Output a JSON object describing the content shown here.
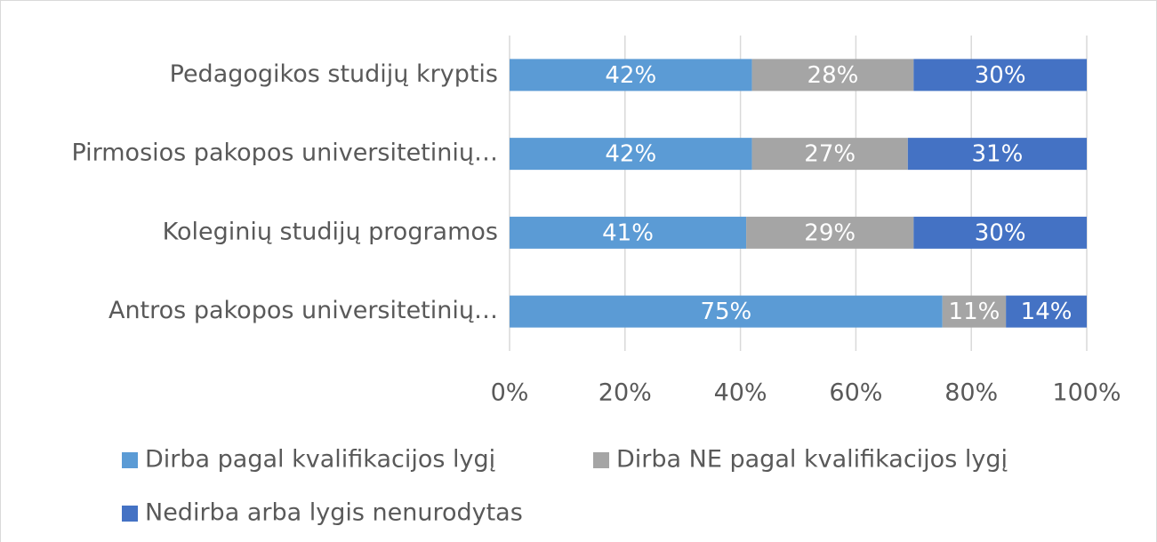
{
  "chart_data": {
    "type": "stacked-bar-horizontal",
    "categories": [
      "Pedagogikos studijų kryptis",
      "Pirmosios pakopos universitetinių…",
      "Koleginių studijų programos",
      "Antros pakopos universitetinių…"
    ],
    "series": [
      {
        "name": "Dirba pagal kvalifikacijos lygį",
        "color": "#5b9bd5",
        "values": [
          42,
          42,
          41,
          75
        ],
        "value_labels": [
          "42%",
          "42%",
          "41%",
          "75%"
        ]
      },
      {
        "name": "Dirba NE pagal kvalifikacijos lygį",
        "color": "#a5a5a5",
        "values": [
          28,
          27,
          29,
          11
        ],
        "value_labels": [
          "28%",
          "27%",
          "29%",
          "11%"
        ]
      },
      {
        "name": "Nedirba arba lygis nenurodytas",
        "color": "#4472c4",
        "values": [
          30,
          31,
          30,
          14
        ],
        "value_labels": [
          "30%",
          "31%",
          "30%",
          "14%"
        ]
      }
    ],
    "xlim": [
      0,
      100
    ],
    "xticks": [
      {
        "value": 0,
        "label": "0%"
      },
      {
        "value": 20,
        "label": "20%"
      },
      {
        "value": 40,
        "label": "40%"
      },
      {
        "value": 60,
        "label": "60%"
      },
      {
        "value": 80,
        "label": "80%"
      },
      {
        "value": 100,
        "label": "100%"
      }
    ],
    "grid": true,
    "legend": "bottom"
  }
}
